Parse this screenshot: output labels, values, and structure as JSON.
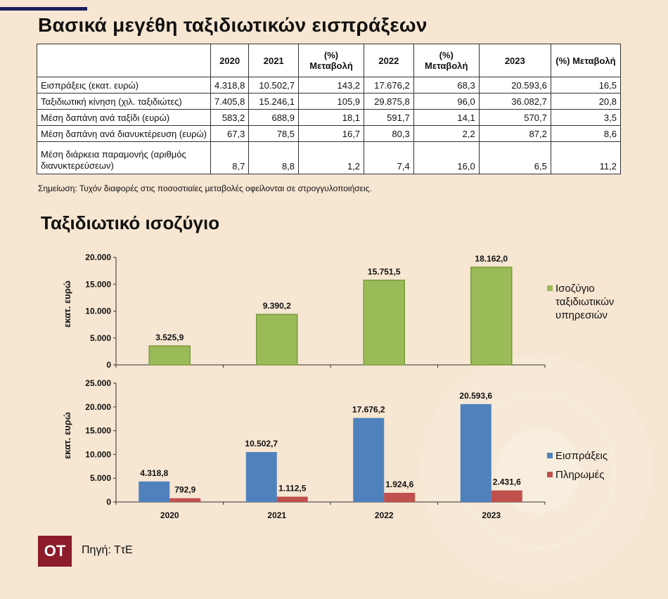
{
  "header": {
    "title": "Βασικά μεγέθη ταξιδιωτικών εισπράξεων"
  },
  "table": {
    "columns": [
      "",
      "2020",
      "2021",
      "(%) Μεταβολή",
      "2022",
      "(%) Μεταβολή",
      "2023",
      "(%) Μεταβολή"
    ],
    "rows": [
      {
        "label": "Εισπράξεις (εκατ. ευρώ)",
        "values": [
          "4.318,8",
          "10.502,7",
          "143,2",
          "17.676,2",
          "68,3",
          "20.593,6",
          "16,5"
        ]
      },
      {
        "label": "Ταξιδιωτική κίνηση (χιλ. ταξιδιώτες)",
        "values": [
          "7.405,8",
          "15.246,1",
          "105,9",
          "29.875,8",
          "96,0",
          "36.082,7",
          "20,8"
        ]
      },
      {
        "label": "Μέση δαπάνη ανά ταξίδι (ευρώ)",
        "values": [
          "583,2",
          "688,9",
          "18,1",
          "591,7",
          "14,1",
          "570,7",
          "3,5"
        ]
      },
      {
        "label": "Μέση δαπάνη ανά διανυκτέρευση (ευρώ)",
        "values": [
          "67,3",
          "78,5",
          "16,7",
          "80,3",
          "2,2",
          "87,2",
          "8,6"
        ]
      },
      {
        "label": "Μέση διάρκεια παραμονής (αριθμός διανυκτερεύσεων)",
        "values": [
          "8,7",
          "8,8",
          "1,2",
          "7,4",
          "16,0",
          "6,5",
          "11,2"
        ]
      }
    ],
    "note": "Σημείωση: Τυχόν διαφορές στις ποσοστιαίες μεταβολές οφείλονται σε στρογγυλοποιήσεις."
  },
  "section2": {
    "title": "Ταξιδιωτικό ισοζύγιο"
  },
  "chart_data": [
    {
      "type": "bar",
      "categories": [
        "2020",
        "2021",
        "2022",
        "2023"
      ],
      "series": [
        {
          "name": "Ισοζύγιο ταξιδιωτικών υπηρεσιών",
          "values": [
            3525.9,
            9390.2,
            15751.5,
            18162.0
          ],
          "labels": [
            "3.525,9",
            "9.390,2",
            "15.751,5",
            "18.162,0"
          ],
          "color": "#9bbb59"
        }
      ],
      "ylabel": "εκατ. ευρώ",
      "ylim": [
        0,
        20000
      ],
      "yticks": [
        0,
        5000,
        10000,
        15000,
        20000
      ],
      "ytick_labels": [
        "0",
        "5.000",
        "10.000",
        "15.000",
        "20.000"
      ],
      "legend": "right",
      "grid": false
    },
    {
      "type": "bar",
      "categories": [
        "2020",
        "2021",
        "2022",
        "2023"
      ],
      "series": [
        {
          "name": "Εισπράξεις",
          "values": [
            4318.8,
            10502.7,
            17676.2,
            20593.6
          ],
          "labels": [
            "4.318,8",
            "10.502,7",
            "17.676,2",
            "20.593,6"
          ],
          "color": "#4f81bd"
        },
        {
          "name": "Πληρωμές",
          "values": [
            792.9,
            1112.5,
            1924.6,
            2431.6
          ],
          "labels": [
            "792,9",
            "1.112,5",
            "1.924,6",
            "2.431,6"
          ],
          "color": "#c0504d"
        }
      ],
      "ylabel": "εκατ. ευρώ",
      "ylim": [
        0,
        25000
      ],
      "yticks": [
        0,
        5000,
        10000,
        15000,
        20000,
        25000
      ],
      "ytick_labels": [
        "0",
        "5.000",
        "10.000",
        "15.000",
        "20.000",
        "25.000"
      ],
      "legend": "right",
      "grid": false
    }
  ],
  "footer": {
    "logo": "OT",
    "source": "Πηγή: ΤτΕ"
  },
  "colors": {
    "background": "#f6e6d2",
    "topbar": "#1b1f5e",
    "logo": "#8c1c2a"
  }
}
